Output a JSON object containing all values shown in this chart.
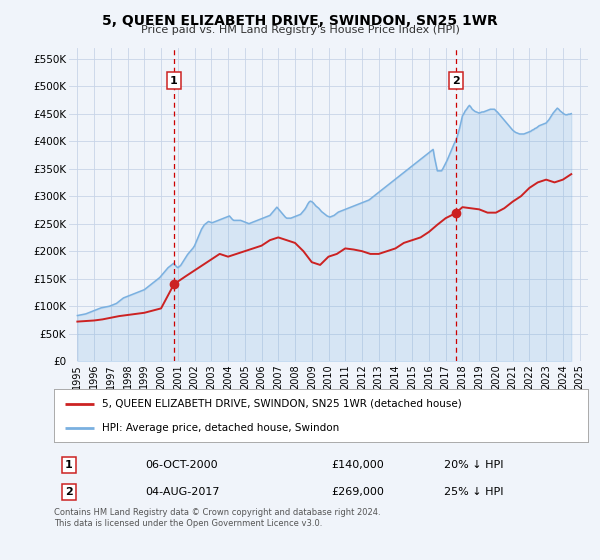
{
  "title": "5, QUEEN ELIZABETH DRIVE, SWINDON, SN25 1WR",
  "subtitle": "Price paid vs. HM Land Registry's House Price Index (HPI)",
  "bg_color": "#f0f4fa",
  "grid_color": "#c8d4e8",
  "hpi_color": "#7ab0e0",
  "price_color": "#cc2222",
  "marker_color": "#cc2222",
  "annotation_color": "#cc0000",
  "ylim": [
    0,
    570000
  ],
  "yticks": [
    0,
    50000,
    100000,
    150000,
    200000,
    250000,
    300000,
    350000,
    400000,
    450000,
    500000,
    550000
  ],
  "ytick_labels": [
    "£0",
    "£50K",
    "£100K",
    "£150K",
    "£200K",
    "£250K",
    "£300K",
    "£350K",
    "£400K",
    "£450K",
    "£500K",
    "£550K"
  ],
  "xlim_start": 1994.5,
  "xlim_end": 2025.5,
  "xticks": [
    1995,
    1996,
    1997,
    1998,
    1999,
    2000,
    2001,
    2002,
    2003,
    2004,
    2005,
    2006,
    2007,
    2008,
    2009,
    2010,
    2011,
    2012,
    2013,
    2014,
    2015,
    2016,
    2017,
    2018,
    2019,
    2020,
    2021,
    2022,
    2023,
    2024,
    2025
  ],
  "marker1_x": 2000.77,
  "marker1_y": 140000,
  "marker2_x": 2017.59,
  "marker2_y": 269000,
  "vline1_x": 2000.77,
  "vline2_x": 2017.59,
  "legend_label_price": "5, QUEEN ELIZABETH DRIVE, SWINDON, SN25 1WR (detached house)",
  "legend_label_hpi": "HPI: Average price, detached house, Swindon",
  "table_row1": [
    "1",
    "06-OCT-2000",
    "£140,000",
    "20% ↓ HPI"
  ],
  "table_row2": [
    "2",
    "04-AUG-2017",
    "£269,000",
    "25% ↓ HPI"
  ],
  "footer": "Contains HM Land Registry data © Crown copyright and database right 2024.\nThis data is licensed under the Open Government Licence v3.0.",
  "hpi_x": [
    1995.0,
    1995.083,
    1995.167,
    1995.25,
    1995.333,
    1995.417,
    1995.5,
    1995.583,
    1995.667,
    1995.75,
    1995.833,
    1995.917,
    1996.0,
    1996.083,
    1996.167,
    1996.25,
    1996.333,
    1996.417,
    1996.5,
    1996.583,
    1996.667,
    1996.75,
    1996.833,
    1996.917,
    1997.0,
    1997.083,
    1997.167,
    1997.25,
    1997.333,
    1997.417,
    1997.5,
    1997.583,
    1997.667,
    1997.75,
    1997.833,
    1997.917,
    1998.0,
    1998.083,
    1998.167,
    1998.25,
    1998.333,
    1998.417,
    1998.5,
    1998.583,
    1998.667,
    1998.75,
    1998.833,
    1998.917,
    1999.0,
    1999.083,
    1999.167,
    1999.25,
    1999.333,
    1999.417,
    1999.5,
    1999.583,
    1999.667,
    1999.75,
    1999.833,
    1999.917,
    2000.0,
    2000.083,
    2000.167,
    2000.25,
    2000.333,
    2000.417,
    2000.5,
    2000.583,
    2000.667,
    2000.75,
    2000.833,
    2000.917,
    2001.0,
    2001.083,
    2001.167,
    2001.25,
    2001.333,
    2001.417,
    2001.5,
    2001.583,
    2001.667,
    2001.75,
    2001.833,
    2001.917,
    2002.0,
    2002.083,
    2002.167,
    2002.25,
    2002.333,
    2002.417,
    2002.5,
    2002.583,
    2002.667,
    2002.75,
    2002.833,
    2002.917,
    2003.0,
    2003.083,
    2003.167,
    2003.25,
    2003.333,
    2003.417,
    2003.5,
    2003.583,
    2003.667,
    2003.75,
    2003.833,
    2003.917,
    2004.0,
    2004.083,
    2004.167,
    2004.25,
    2004.333,
    2004.417,
    2004.5,
    2004.583,
    2004.667,
    2004.75,
    2004.833,
    2004.917,
    2005.0,
    2005.083,
    2005.167,
    2005.25,
    2005.333,
    2005.417,
    2005.5,
    2005.583,
    2005.667,
    2005.75,
    2005.833,
    2005.917,
    2006.0,
    2006.083,
    2006.167,
    2006.25,
    2006.333,
    2006.417,
    2006.5,
    2006.583,
    2006.667,
    2006.75,
    2006.833,
    2006.917,
    2007.0,
    2007.083,
    2007.167,
    2007.25,
    2007.333,
    2007.417,
    2007.5,
    2007.583,
    2007.667,
    2007.75,
    2007.833,
    2007.917,
    2008.0,
    2008.083,
    2008.167,
    2008.25,
    2008.333,
    2008.417,
    2008.5,
    2008.583,
    2008.667,
    2008.75,
    2008.833,
    2008.917,
    2009.0,
    2009.083,
    2009.167,
    2009.25,
    2009.333,
    2009.417,
    2009.5,
    2009.583,
    2009.667,
    2009.75,
    2009.833,
    2009.917,
    2010.0,
    2010.083,
    2010.167,
    2010.25,
    2010.333,
    2010.417,
    2010.5,
    2010.583,
    2010.667,
    2010.75,
    2010.833,
    2010.917,
    2011.0,
    2011.083,
    2011.167,
    2011.25,
    2011.333,
    2011.417,
    2011.5,
    2011.583,
    2011.667,
    2011.75,
    2011.833,
    2011.917,
    2012.0,
    2012.083,
    2012.167,
    2012.25,
    2012.333,
    2012.417,
    2012.5,
    2012.583,
    2012.667,
    2012.75,
    2012.833,
    2012.917,
    2013.0,
    2013.083,
    2013.167,
    2013.25,
    2013.333,
    2013.417,
    2013.5,
    2013.583,
    2013.667,
    2013.75,
    2013.833,
    2013.917,
    2014.0,
    2014.083,
    2014.167,
    2014.25,
    2014.333,
    2014.417,
    2014.5,
    2014.583,
    2014.667,
    2014.75,
    2014.833,
    2014.917,
    2015.0,
    2015.083,
    2015.167,
    2015.25,
    2015.333,
    2015.417,
    2015.5,
    2015.583,
    2015.667,
    2015.75,
    2015.833,
    2015.917,
    2016.0,
    2016.083,
    2016.167,
    2016.25,
    2016.333,
    2016.417,
    2016.5,
    2016.583,
    2016.667,
    2016.75,
    2016.833,
    2016.917,
    2017.0,
    2017.083,
    2017.167,
    2017.25,
    2017.333,
    2017.417,
    2017.5,
    2017.583,
    2017.667,
    2017.75,
    2017.833,
    2017.917,
    2018.0,
    2018.083,
    2018.167,
    2018.25,
    2018.333,
    2018.417,
    2018.5,
    2018.583,
    2018.667,
    2018.75,
    2018.833,
    2018.917,
    2019.0,
    2019.083,
    2019.167,
    2019.25,
    2019.333,
    2019.417,
    2019.5,
    2019.583,
    2019.667,
    2019.75,
    2019.833,
    2019.917,
    2020.0,
    2020.083,
    2020.167,
    2020.25,
    2020.333,
    2020.417,
    2020.5,
    2020.583,
    2020.667,
    2020.75,
    2020.833,
    2020.917,
    2021.0,
    2021.083,
    2021.167,
    2021.25,
    2021.333,
    2021.417,
    2021.5,
    2021.583,
    2021.667,
    2021.75,
    2021.833,
    2021.917,
    2022.0,
    2022.083,
    2022.167,
    2022.25,
    2022.333,
    2022.417,
    2022.5,
    2022.583,
    2022.667,
    2022.75,
    2022.833,
    2022.917,
    2023.0,
    2023.083,
    2023.167,
    2023.25,
    2023.333,
    2023.417,
    2023.5,
    2023.583,
    2023.667,
    2023.75,
    2023.833,
    2023.917,
    2024.0,
    2024.083,
    2024.167,
    2024.25,
    2024.333,
    2024.417,
    2024.5
  ],
  "hpi_y": [
    83000,
    83500,
    84000,
    84500,
    85000,
    85500,
    86000,
    87000,
    88000,
    89000,
    90000,
    91000,
    92000,
    93000,
    94000,
    95000,
    96000,
    97000,
    97500,
    98000,
    98500,
    99000,
    99500,
    100000,
    101000,
    102000,
    103000,
    104000,
    105000,
    107000,
    109000,
    111000,
    113000,
    115000,
    116000,
    117000,
    118000,
    119000,
    120000,
    121000,
    122000,
    123000,
    124000,
    125000,
    126000,
    127000,
    128000,
    129000,
    130000,
    132000,
    134000,
    136000,
    138000,
    140000,
    142000,
    144000,
    146000,
    148000,
    150000,
    152000,
    155000,
    158000,
    161000,
    164000,
    167000,
    170000,
    172000,
    174000,
    176000,
    178000,
    175000,
    172000,
    170000,
    172000,
    174000,
    178000,
    182000,
    186000,
    190000,
    194000,
    197000,
    200000,
    203000,
    206000,
    210000,
    216000,
    222000,
    228000,
    234000,
    240000,
    244000,
    248000,
    250000,
    252000,
    254000,
    253000,
    252000,
    252000,
    253000,
    254000,
    255000,
    256000,
    257000,
    258000,
    259000,
    260000,
    261000,
    262000,
    263000,
    264000,
    261000,
    258000,
    256000,
    256000,
    256000,
    256000,
    256000,
    256000,
    255000,
    254000,
    253000,
    252000,
    251000,
    250000,
    251000,
    252000,
    253000,
    254000,
    255000,
    256000,
    257000,
    258000,
    259000,
    260000,
    261000,
    262000,
    263000,
    264000,
    265000,
    268000,
    271000,
    274000,
    277000,
    280000,
    277000,
    274000,
    271000,
    268000,
    265000,
    262000,
    260000,
    260000,
    260000,
    260000,
    261000,
    262000,
    263000,
    264000,
    265000,
    266000,
    267000,
    270000,
    273000,
    276000,
    280000,
    285000,
    289000,
    291000,
    290000,
    288000,
    285000,
    282000,
    280000,
    278000,
    275000,
    272000,
    270000,
    268000,
    266000,
    264000,
    263000,
    262000,
    263000,
    264000,
    265000,
    267000,
    269000,
    271000,
    272000,
    273000,
    274000,
    275000,
    276000,
    277000,
    278000,
    279000,
    280000,
    281000,
    282000,
    283000,
    284000,
    285000,
    286000,
    287000,
    288000,
    289000,
    290000,
    291000,
    292000,
    293000,
    295000,
    297000,
    299000,
    301000,
    303000,
    305000,
    307000,
    309000,
    311000,
    313000,
    315000,
    317000,
    319000,
    321000,
    323000,
    325000,
    327000,
    329000,
    331000,
    333000,
    335000,
    337000,
    339000,
    341000,
    343000,
    345000,
    347000,
    349000,
    351000,
    353000,
    355000,
    357000,
    359000,
    361000,
    363000,
    365000,
    367000,
    369000,
    371000,
    373000,
    375000,
    377000,
    379000,
    381000,
    383000,
    385000,
    370000,
    358000,
    346000,
    346000,
    346000,
    346000,
    350000,
    355000,
    360000,
    365000,
    371000,
    377000,
    383000,
    389000,
    395000,
    400000,
    406000,
    415000,
    424000,
    435000,
    446000,
    450000,
    455000,
    458000,
    462000,
    465000,
    462000,
    458000,
    456000,
    454000,
    453000,
    452000,
    451000,
    452000,
    453000,
    453000,
    454000,
    455000,
    456000,
    457000,
    458000,
    458000,
    458000,
    458000,
    455000,
    453000,
    450000,
    447000,
    444000,
    441000,
    438000,
    435000,
    432000,
    429000,
    426000,
    423000,
    420000,
    418000,
    416000,
    415000,
    414000,
    413000,
    413000,
    413000,
    413000,
    414000,
    415000,
    416000,
    417000,
    418000,
    420000,
    421000,
    423000,
    424000,
    426000,
    428000,
    429000,
    430000,
    431000,
    432000,
    433000,
    436000,
    439000,
    443000,
    447000,
    451000,
    454000,
    457000,
    460000,
    458000,
    455000,
    453000,
    451000,
    449000,
    448000,
    448000,
    449000,
    449000,
    450000
  ],
  "price_x": [
    1995.0,
    1995.5,
    1996.0,
    1996.5,
    1997.0,
    1997.5,
    1998.0,
    1998.5,
    1999.0,
    1999.5,
    2000.0,
    2000.77,
    2001.5,
    2002.0,
    2002.5,
    2003.0,
    2003.5,
    2004.0,
    2004.5,
    2005.0,
    2005.5,
    2006.0,
    2006.5,
    2007.0,
    2007.5,
    2008.0,
    2008.5,
    2009.0,
    2009.5,
    2010.0,
    2010.5,
    2011.0,
    2011.5,
    2012.0,
    2012.5,
    2013.0,
    2013.5,
    2014.0,
    2014.5,
    2015.0,
    2015.5,
    2016.0,
    2016.5,
    2017.0,
    2017.59,
    2018.0,
    2018.5,
    2019.0,
    2019.5,
    2020.0,
    2020.5,
    2021.0,
    2021.5,
    2022.0,
    2022.5,
    2023.0,
    2023.5,
    2024.0,
    2024.5
  ],
  "price_y": [
    72000,
    73000,
    74000,
    76000,
    79000,
    82000,
    84000,
    86000,
    88000,
    92000,
    96000,
    140000,
    155000,
    165000,
    175000,
    185000,
    195000,
    190000,
    195000,
    200000,
    205000,
    210000,
    220000,
    225000,
    220000,
    215000,
    200000,
    180000,
    175000,
    190000,
    195000,
    205000,
    203000,
    200000,
    195000,
    195000,
    200000,
    205000,
    215000,
    220000,
    225000,
    235000,
    248000,
    260000,
    269000,
    280000,
    278000,
    276000,
    270000,
    270000,
    278000,
    290000,
    300000,
    315000,
    325000,
    330000,
    325000,
    330000,
    340000
  ]
}
